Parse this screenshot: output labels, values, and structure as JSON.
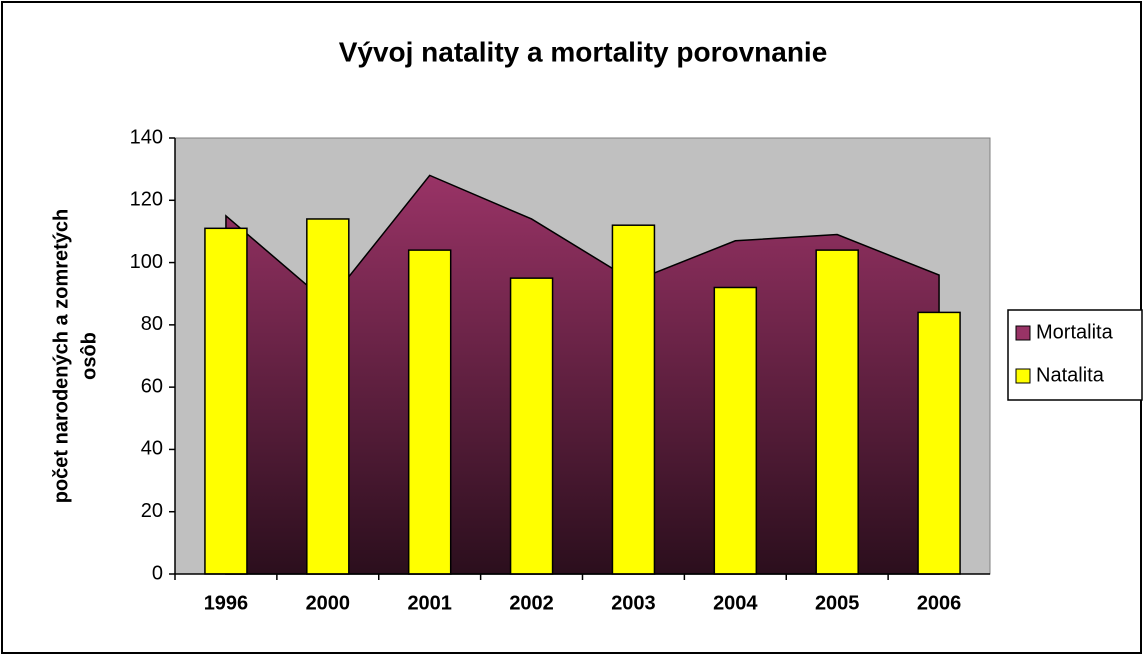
{
  "chart_data": {
    "type": "bar-area",
    "title": "Vývoj natality a mortality porovnanie",
    "ylabel": [
      "počet narodených a zomretých",
      "osôb"
    ],
    "categories": [
      "1996",
      "2000",
      "2001",
      "2002",
      "2003",
      "2004",
      "2005",
      "2006"
    ],
    "series": [
      {
        "name": "Mortalita",
        "type": "area",
        "color": "#993366",
        "values": [
          115,
          87,
          128,
          114,
          94,
          107,
          109,
          96
        ]
      },
      {
        "name": "Natalita",
        "type": "bar",
        "color": "#ffff00",
        "values": [
          111,
          114,
          104,
          95,
          112,
          92,
          104,
          84
        ]
      }
    ],
    "ylim": [
      0,
      140
    ],
    "yticks": [
      0,
      20,
      40,
      60,
      80,
      100,
      120,
      140
    ],
    "grid": false,
    "plot_background": "#c0c0c0",
    "legend": "right"
  }
}
